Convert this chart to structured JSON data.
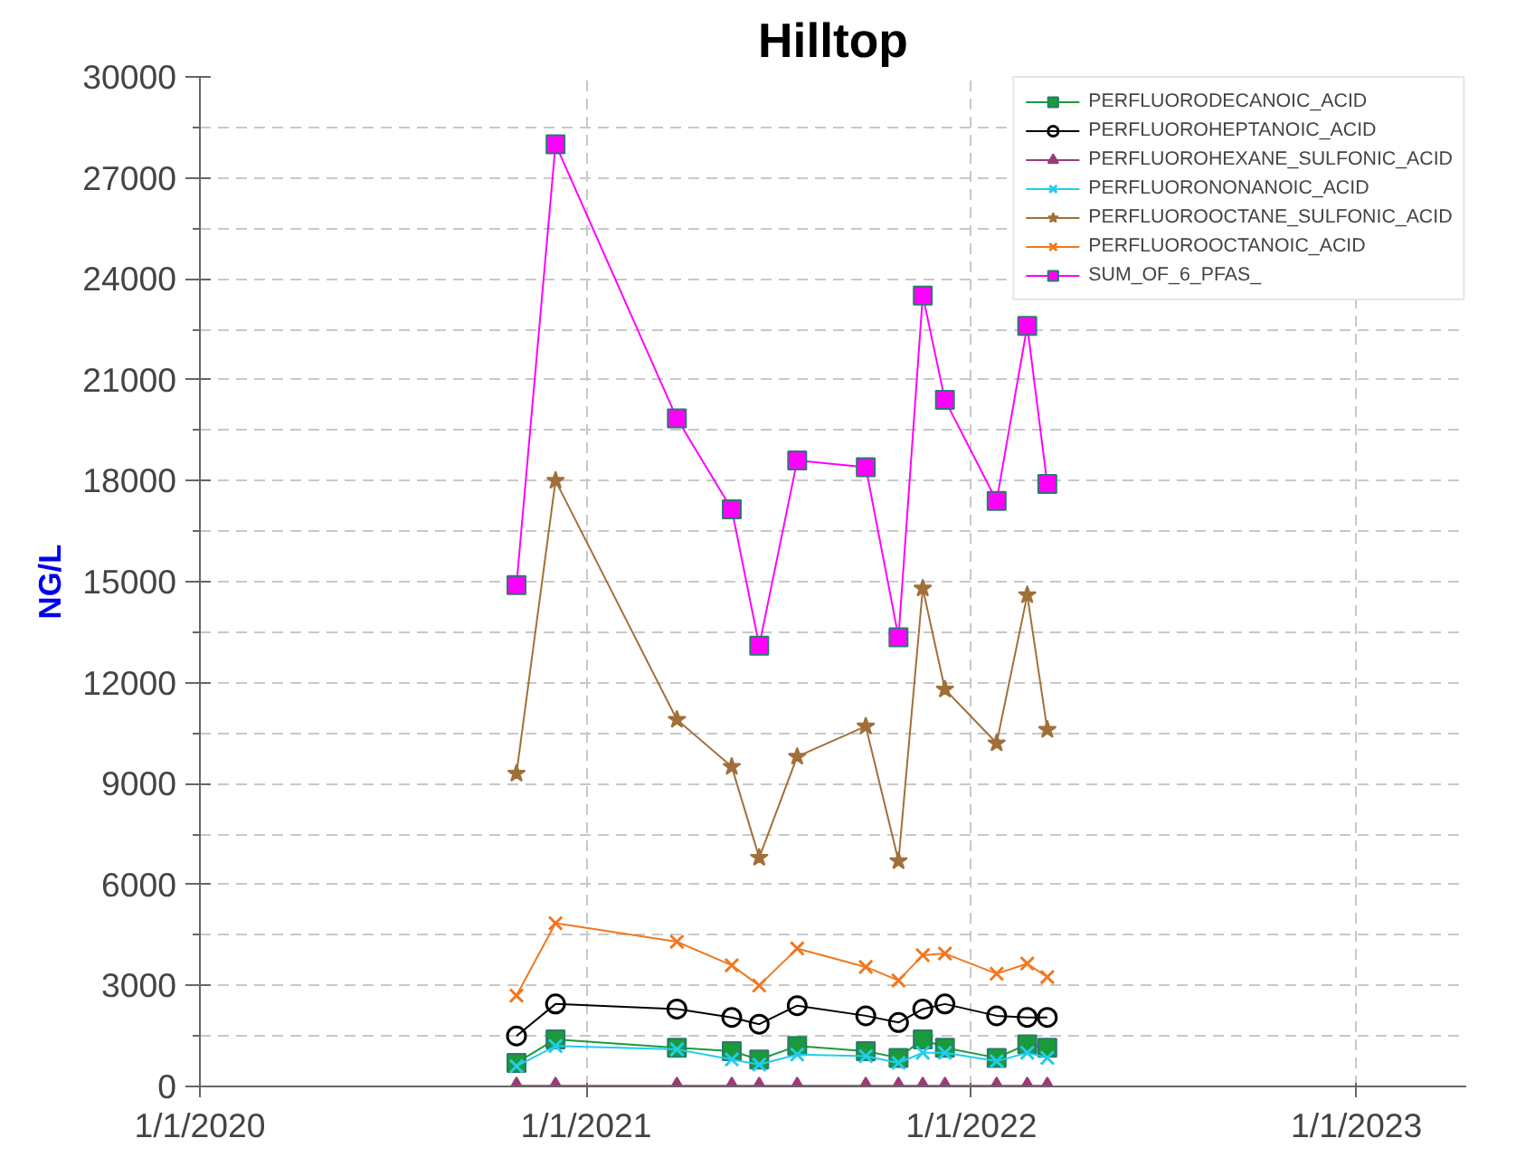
{
  "chart_data": {
    "type": "line",
    "title": "Hilltop",
    "ylabel": "NG/L",
    "x": [
      "2020-10-27",
      "2020-12-03",
      "2021-03-28",
      "2021-05-19",
      "2021-06-14",
      "2021-07-20",
      "2021-09-23",
      "2021-10-24",
      "2021-11-16",
      "2021-12-07",
      "2022-01-25",
      "2022-02-23",
      "2022-03-14"
    ],
    "xlim": [
      "2020-01-01",
      "2023-04-15"
    ],
    "xticks": [
      {
        "value": "2020-01-01",
        "label": "1/1/2020"
      },
      {
        "value": "2021-01-01",
        "label": "1/1/2021"
      },
      {
        "value": "2022-01-01",
        "label": "1/1/2022"
      },
      {
        "value": "2023-01-01",
        "label": "1/1/2023"
      }
    ],
    "ylim": [
      0,
      30000
    ],
    "yticks": [
      0,
      3000,
      6000,
      9000,
      12000,
      15000,
      18000,
      21000,
      24000,
      27000,
      30000
    ],
    "grid": true,
    "legend": "top right",
    "line_style": "solid",
    "series": [
      {
        "name": "PERFLUORODECANOIC_ACID",
        "color": "#1a9a3a",
        "marker": "square",
        "values": [
          700,
          1400,
          1150,
          1050,
          800,
          1200,
          1050,
          850,
          1400,
          1150,
          850,
          1250,
          1150
        ]
      },
      {
        "name": "PERFLUOROHEPTANOIC_ACID",
        "color": "#000000",
        "marker": "circle",
        "values": [
          1500,
          2450,
          2300,
          2050,
          1850,
          2400,
          2100,
          1900,
          2300,
          2450,
          2100,
          2050,
          2050
        ]
      },
      {
        "name": "PERFLUOROHEXANE_SULFONIC_ACID",
        "color": "#9b3b7a",
        "marker": "triangle",
        "values": [
          20,
          20,
          20,
          20,
          20,
          20,
          20,
          20,
          20,
          20,
          20,
          20,
          20
        ]
      },
      {
        "name": "PERFLUORONONANOIC_ACID",
        "color": "#22ccee",
        "marker": "cross",
        "values": [
          600,
          1200,
          1100,
          800,
          650,
          950,
          900,
          700,
          1000,
          1000,
          750,
          1000,
          850
        ]
      },
      {
        "name": "PERFLUOROOCTANE_SULFONIC_ACID",
        "color": "#a0703a",
        "marker": "star",
        "values": [
          9300,
          18000,
          10900,
          9500,
          6800,
          9800,
          10700,
          6700,
          14800,
          11800,
          10200,
          14600,
          10600
        ]
      },
      {
        "name": "PERFLUOROOCTANOIC_ACID",
        "color": "#f07820",
        "marker": "cross",
        "values": [
          2700,
          4850,
          4300,
          3600,
          3000,
          4100,
          3550,
          3150,
          3900,
          3950,
          3350,
          3650,
          3250
        ]
      },
      {
        "name": "SUM_OF_6_PFAS_",
        "color": "#ff00ff",
        "marker": "square",
        "values": [
          14900,
          28000,
          19850,
          17150,
          13100,
          18600,
          18400,
          13350,
          23500,
          20400,
          17400,
          22600,
          17900
        ]
      }
    ]
  }
}
